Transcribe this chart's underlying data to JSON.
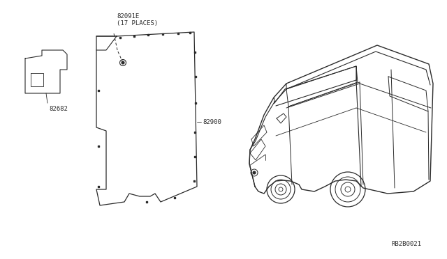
{
  "bg_color": "#ffffff",
  "line_color": "#2a2a2a",
  "text_color": "#2a2a2a",
  "diagram_ref": "RB2B0021",
  "part_82091E_label": "82091E\n(17 PLACES)",
  "part_82682_label": "82682",
  "part_82900_label": "82900",
  "font_size_labels": 6.5,
  "font_size_ref": 6.5,
  "font_family": "monospace"
}
